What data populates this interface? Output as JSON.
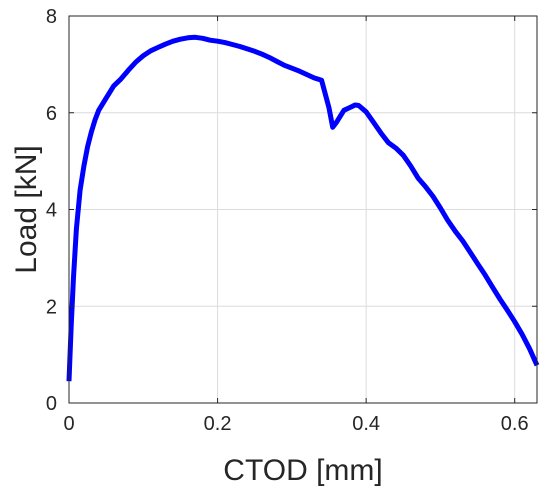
{
  "chart_data": {
    "type": "line",
    "xlabel": "CTOD [mm]",
    "ylabel": "Load [kN]",
    "xlim": [
      0,
      0.63
    ],
    "ylim": [
      0,
      8
    ],
    "xticks": [
      0,
      0.2,
      0.4,
      0.6
    ],
    "xtick_labels": [
      "0",
      "0.2",
      "0.4",
      "0.6"
    ],
    "yticks": [
      0,
      2,
      4,
      6,
      8
    ],
    "ytick_labels": [
      "0",
      "2",
      "4",
      "6",
      "8"
    ],
    "grid": true,
    "legend": "none",
    "colors": {
      "series": "#0000ff",
      "grid": "#dcdcdc",
      "axis": "#262626"
    },
    "series": [
      {
        "x": [
          0,
          0.003,
          0.006,
          0.01,
          0.015,
          0.02,
          0.025,
          0.03,
          0.035,
          0.04,
          0.05,
          0.06,
          0.07,
          0.08,
          0.09,
          0.1,
          0.11,
          0.12,
          0.13,
          0.14,
          0.15,
          0.16,
          0.17,
          0.18,
          0.19,
          0.2,
          0.21,
          0.22,
          0.23,
          0.24,
          0.25,
          0.26,
          0.27,
          0.28,
          0.29,
          0.3,
          0.31,
          0.32,
          0.33,
          0.34,
          0.35,
          0.355,
          0.36,
          0.37,
          0.38,
          0.385,
          0.39,
          0.4,
          0.41,
          0.42,
          0.43,
          0.44,
          0.45,
          0.46,
          0.47,
          0.48,
          0.49,
          0.5,
          0.51,
          0.52,
          0.53,
          0.54,
          0.55,
          0.56,
          0.57,
          0.58,
          0.59,
          0.6,
          0.61,
          0.62,
          0.63
        ],
        "y": [
          0.45,
          1.6,
          2.6,
          3.6,
          4.4,
          4.9,
          5.3,
          5.6,
          5.85,
          6.05,
          6.3,
          6.55,
          6.7,
          6.88,
          7.05,
          7.18,
          7.28,
          7.35,
          7.42,
          7.48,
          7.52,
          7.55,
          7.56,
          7.54,
          7.5,
          7.48,
          7.45,
          7.41,
          7.37,
          7.32,
          7.27,
          7.21,
          7.14,
          7.06,
          6.98,
          6.92,
          6.86,
          6.79,
          6.72,
          6.67,
          6.1,
          5.7,
          5.8,
          6.05,
          6.12,
          6.16,
          6.15,
          6.02,
          5.8,
          5.58,
          5.38,
          5.27,
          5.12,
          4.9,
          4.65,
          4.47,
          4.27,
          4.03,
          3.77,
          3.55,
          3.35,
          3.12,
          2.88,
          2.65,
          2.4,
          2.15,
          1.92,
          1.68,
          1.42,
          1.12,
          0.78
        ]
      }
    ]
  }
}
